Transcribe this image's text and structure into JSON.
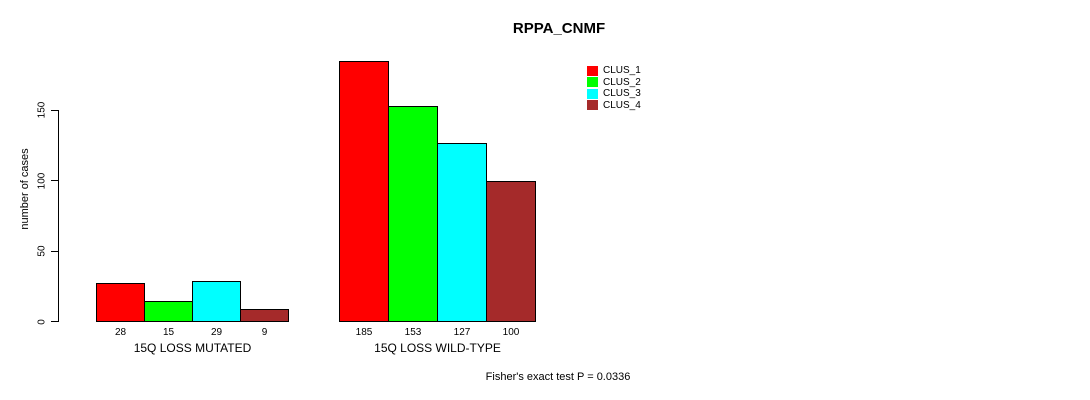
{
  "title": "RPPA_CNMF",
  "ylabel": "number of cases",
  "annotation": "Fisher's exact test P = 0.0336",
  "legend": {
    "items": [
      {
        "label": "CLUS_1",
        "color": "#FF0000"
      },
      {
        "label": "CLUS_2",
        "color": "#00FF00"
      },
      {
        "label": "CLUS_3",
        "color": "#00FFFF"
      },
      {
        "label": "CLUS_4",
        "color": "#A52A2A"
      }
    ]
  },
  "chart_data": {
    "type": "bar",
    "title": "RPPA_CNMF",
    "xlabel": "",
    "ylabel": "number of cases",
    "yticks": [
      0,
      50,
      100,
      150
    ],
    "ylim": [
      0,
      190
    ],
    "grid": false,
    "legend_position": "top-right",
    "series": [
      "CLUS_1",
      "CLUS_2",
      "CLUS_3",
      "CLUS_4"
    ],
    "colors": [
      "#FF0000",
      "#00FF00",
      "#00FFFF",
      "#A52A2A"
    ],
    "groups": [
      {
        "label": "15Q LOSS MUTATED",
        "values": [
          28,
          15,
          29,
          9
        ]
      },
      {
        "label": "15Q LOSS WILD-TYPE",
        "values": [
          185,
          153,
          127,
          100
        ]
      }
    ],
    "bar_value_labels": true,
    "annotation": "Fisher's exact test P = 0.0336"
  }
}
